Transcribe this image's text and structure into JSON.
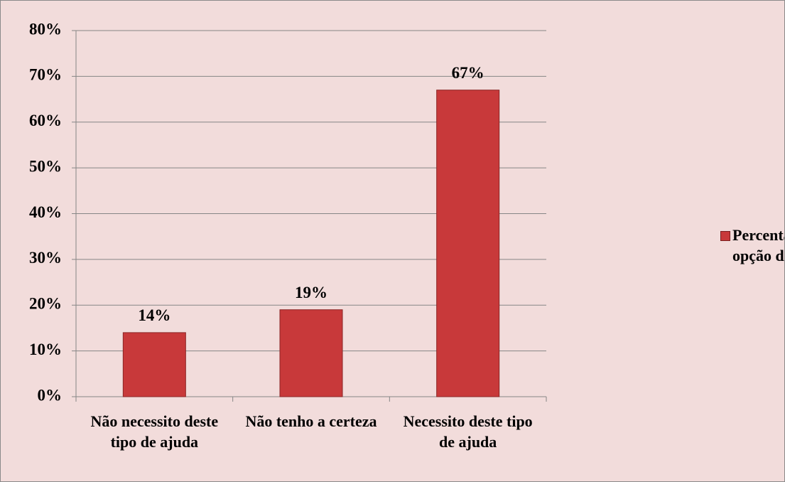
{
  "chart_data": {
    "type": "bar",
    "categories": [
      "Não necessito deste tipo de ajuda",
      "Não tenho a certeza",
      "Necessito deste tipo de ajuda"
    ],
    "series": [
      {
        "name": "Percentagem de cada opção de resposta",
        "color": "#c8393a",
        "values": [
          14,
          19,
          67
        ],
        "value_labels": [
          "14%",
          "19%",
          "67%"
        ]
      }
    ],
    "ylim": [
      0,
      80
    ],
    "yticks": [
      {
        "value": 0,
        "label": "0%"
      },
      {
        "value": 10,
        "label": "10%"
      },
      {
        "value": 20,
        "label": "20%"
      },
      {
        "value": 30,
        "label": "30%"
      },
      {
        "value": 40,
        "label": "40%"
      },
      {
        "value": 50,
        "label": "50%"
      },
      {
        "value": 60,
        "label": "60%"
      },
      {
        "value": 70,
        "label": "70%"
      },
      {
        "value": 80,
        "label": "80%"
      }
    ],
    "grid": true,
    "legend": "right"
  }
}
